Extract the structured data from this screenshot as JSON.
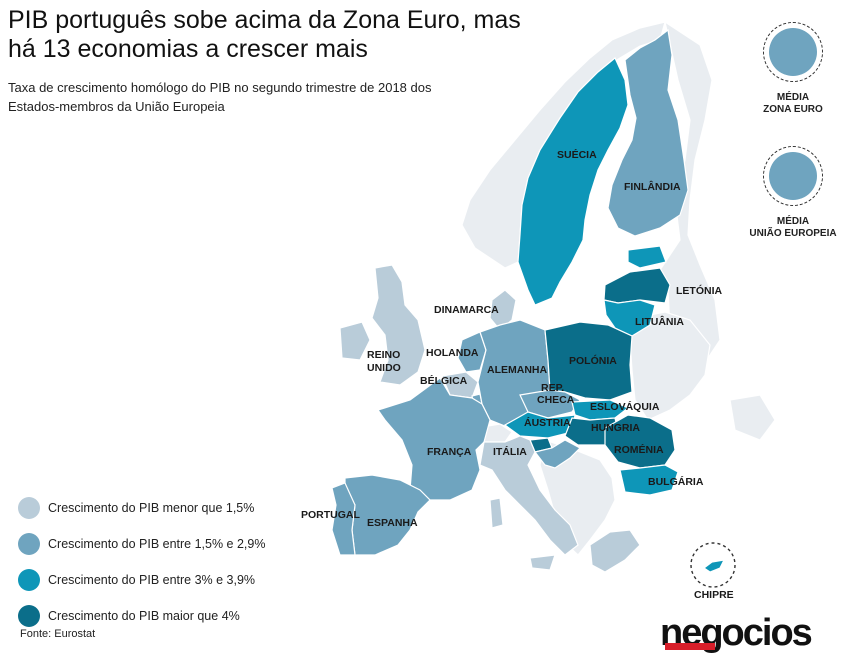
{
  "title": "PIB português sobe acima da Zona Euro, mas há 13 economias a crescer mais",
  "subtitle": "Taxa de crescimento homólogo do PIB no segundo trimestre de 2018 dos Estados-membros da União Europeia",
  "colors": {
    "lt15": "#b9ccd9",
    "r15_29": "#6fa4bf",
    "r3_39": "#0e96b8",
    "gt4": "#0b6e8a",
    "nonEU": "#e9edf1",
    "sea": "#ffffff"
  },
  "legend": [
    {
      "label": "Crescimento do PIB menor que 1,5%",
      "color": "#b9ccd9"
    },
    {
      "label": "Crescimento do PIB entre 1,5% e 2,9%",
      "color": "#6fa4bf"
    },
    {
      "label": "Crescimento do PIB entre 3% e 3,9%",
      "color": "#0e96b8"
    },
    {
      "label": "Crescimento do PIB maior que 4%",
      "color": "#0b6e8a"
    }
  ],
  "averages": {
    "zona_euro": {
      "label_line1": "MÉDIA",
      "label_line2": "ZONA EURO",
      "color": "#6fa4bf"
    },
    "uniao_europeia": {
      "label_line1": "MÉDIA",
      "label_line2": "UNIÃO EUROPEIA",
      "color": "#6fa4bf"
    }
  },
  "countries": {
    "suecia": "SUÉCIA",
    "finlandia": "FINLÂNDIA",
    "letonia": "LETÓNIA",
    "lituania": "LITUÂNIA",
    "dinamarca": "DINAMARCA",
    "reino_unido_1": "REINO",
    "reino_unido_2": "UNIDO",
    "holanda": "HOLANDA",
    "belgica": "BÉLGICA",
    "alemanha": "ALEMANHA",
    "polonia": "POLÓNIA",
    "rep_checa_1": "REP.",
    "rep_checa_2": "CHECA",
    "eslovaquia": "ESLOVÁQUIA",
    "austria": "ÁUSTRIA",
    "hungria": "HUNGRIA",
    "romenia": "ROMÉNIA",
    "franca": "FRANÇA",
    "italia": "ITÁLIA",
    "bulgaria": "BULGÁRIA",
    "portugal": "PORTUGAL",
    "espanha": "ESPANHA",
    "chipre": "CHIPRE"
  },
  "source": "Fonte: Eurostat",
  "brand": "negocios"
}
